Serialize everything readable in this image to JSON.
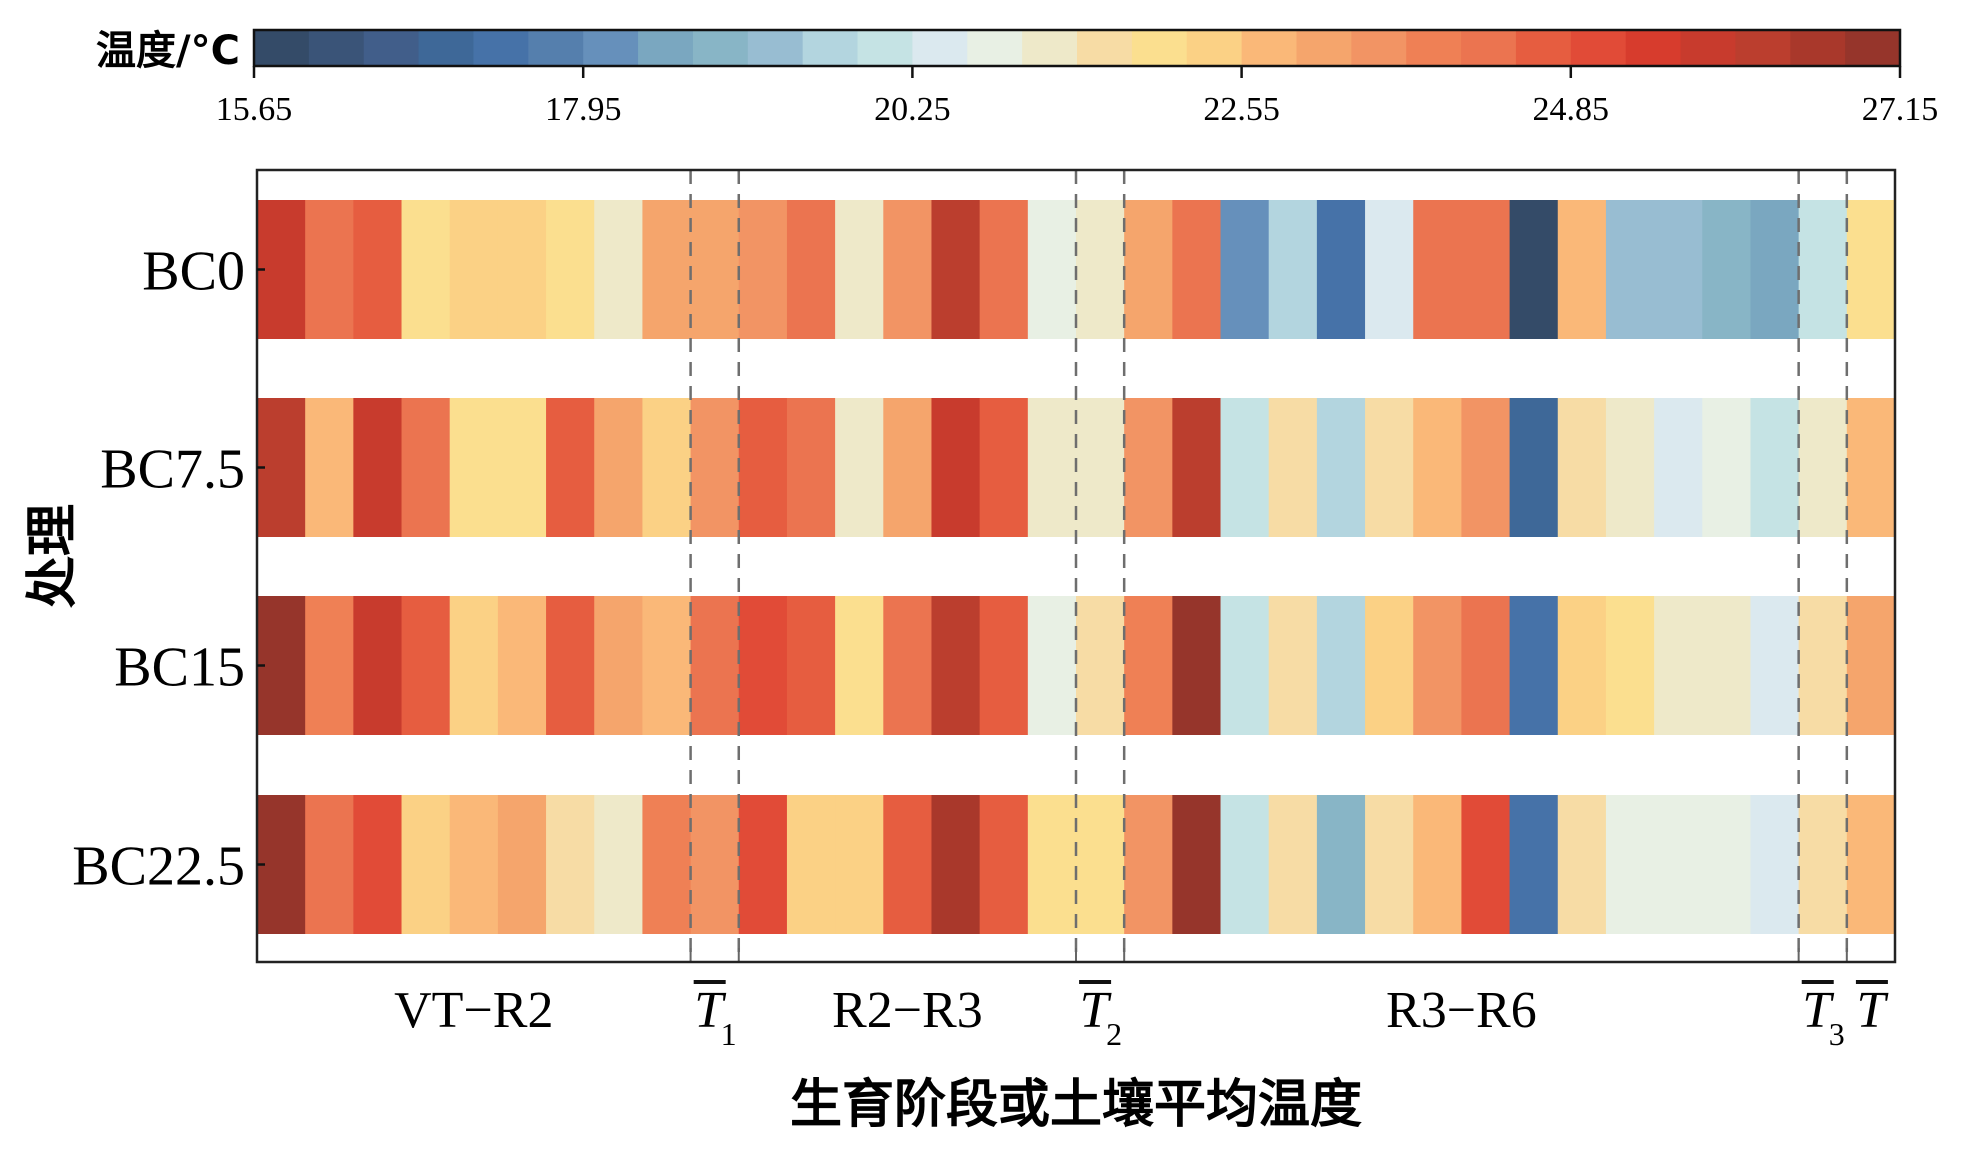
{
  "chart_data": {
    "type": "heatmap",
    "title": "",
    "colorbar": {
      "label": "温度/°C",
      "min": 15.65,
      "max": 27.15,
      "n_bins": 30,
      "ticks": [
        15.65,
        17.95,
        20.25,
        22.55,
        24.85,
        27.15
      ],
      "tick_labels": [
        "15.65",
        "17.95",
        "20.25",
        "22.55",
        "24.85",
        "27.15"
      ],
      "colors": [
        "#344b68",
        "#3a5478",
        "#415e8a",
        "#3e6898",
        "#4672a8",
        "#557fad",
        "#6690bb",
        "#7aa7c0",
        "#88b5c6",
        "#98bdd2",
        "#b3d5df",
        "#c5e3e4",
        "#dbe9ef",
        "#e8f0e4",
        "#eee9c9",
        "#f7dca5",
        "#fbdf8f",
        "#fbd185",
        "#fab878",
        "#f5a56c",
        "#f29464",
        "#ef8055",
        "#eb7450",
        "#e65d40",
        "#e14b37",
        "#d73c2d",
        "#c83b2d",
        "#bb3e2e",
        "#a9382b",
        "#96352b"
      ]
    },
    "ylabel": "处理",
    "xlabel": "生育阶段或土壤平均温度",
    "rows": [
      "BC0",
      "BC7.5",
      "BC15",
      "BC22.5"
    ],
    "n_columns": 34,
    "column_groups": [
      {
        "label": "VT−R2",
        "start": 0,
        "end": 8,
        "kind": "stage"
      },
      {
        "label": "T",
        "sub": "1",
        "start": 9,
        "end": 9,
        "kind": "mean"
      },
      {
        "label": "R2−R3",
        "start": 10,
        "end": 16,
        "kind": "stage"
      },
      {
        "label": "T",
        "sub": "2",
        "start": 17,
        "end": 17,
        "kind": "mean"
      },
      {
        "label": "R3−R6",
        "start": 18,
        "end": 31,
        "kind": "stage"
      },
      {
        "label": "T",
        "sub": "3",
        "start": 32,
        "end": 32,
        "kind": "mean"
      },
      {
        "label": "T",
        "sub": "",
        "start": 33,
        "end": 33,
        "kind": "mean"
      }
    ],
    "dashed_separators_after_columns": [
      8,
      9,
      16,
      17,
      31,
      32
    ],
    "values": [
      [
        25.81,
        24.28,
        24.66,
        22.17,
        22.55,
        22.55,
        22.17,
        21.4,
        23.13,
        23.13,
        23.51,
        24.28,
        21.4,
        23.51,
        26.19,
        24.28,
        21.02,
        21.4,
        23.13,
        24.28,
        18.14,
        19.87,
        17.57,
        20.44,
        24.28,
        24.28,
        15.84,
        22.74,
        19.49,
        19.49,
        19.11,
        18.72,
        20.06,
        22.17
      ],
      [
        26.19,
        22.74,
        25.81,
        24.28,
        22.17,
        22.17,
        24.66,
        23.13,
        22.55,
        23.51,
        24.66,
        24.28,
        21.4,
        23.13,
        25.81,
        24.66,
        21.4,
        21.4,
        23.51,
        26.19,
        20.06,
        21.79,
        19.68,
        21.79,
        22.74,
        23.51,
        16.99,
        21.79,
        21.4,
        20.44,
        21.02,
        20.06,
        21.4,
        22.74
      ],
      [
        26.96,
        23.89,
        25.81,
        24.66,
        22.55,
        22.74,
        24.66,
        23.13,
        22.74,
        24.28,
        25.04,
        24.66,
        22.17,
        24.28,
        26.19,
        24.66,
        21.02,
        21.79,
        23.89,
        26.96,
        20.06,
        21.79,
        19.68,
        22.55,
        23.51,
        24.28,
        17.57,
        22.55,
        22.17,
        21.4,
        21.4,
        20.44,
        21.79,
        23.13
      ],
      [
        26.96,
        24.28,
        25.04,
        22.55,
        22.74,
        23.13,
        21.79,
        21.4,
        23.89,
        23.51,
        25.04,
        22.55,
        22.55,
        24.66,
        26.58,
        24.66,
        22.17,
        22.17,
        23.51,
        26.96,
        20.06,
        21.79,
        18.91,
        21.79,
        22.74,
        25.04,
        17.57,
        21.79,
        21.02,
        21.02,
        21.02,
        20.44,
        21.79,
        22.74
      ]
    ],
    "bin_indices": [
      [
        26,
        22,
        23,
        16,
        17,
        17,
        16,
        14,
        19,
        19,
        20,
        22,
        14,
        20,
        27,
        22,
        13,
        14,
        19,
        22,
        6,
        10,
        4,
        12,
        22,
        22,
        0,
        18,
        9,
        9,
        8,
        7,
        11,
        16
      ],
      [
        27,
        18,
        26,
        22,
        16,
        16,
        23,
        19,
        17,
        20,
        23,
        22,
        14,
        19,
        26,
        23,
        14,
        14,
        20,
        27,
        11,
        15,
        10,
        15,
        18,
        20,
        3,
        15,
        14,
        12,
        13,
        11,
        14,
        18
      ],
      [
        29,
        21,
        26,
        23,
        17,
        18,
        23,
        19,
        18,
        22,
        24,
        23,
        16,
        22,
        27,
        23,
        13,
        15,
        21,
        29,
        11,
        15,
        10,
        17,
        20,
        22,
        4,
        17,
        16,
        14,
        14,
        12,
        15,
        19
      ],
      [
        29,
        22,
        24,
        17,
        18,
        19,
        15,
        14,
        21,
        20,
        24,
        17,
        17,
        23,
        28,
        23,
        16,
        16,
        20,
        29,
        11,
        15,
        8,
        15,
        18,
        24,
        4,
        15,
        13,
        13,
        13,
        12,
        15,
        18
      ]
    ],
    "grid": false,
    "legend": "colorbar-top"
  }
}
